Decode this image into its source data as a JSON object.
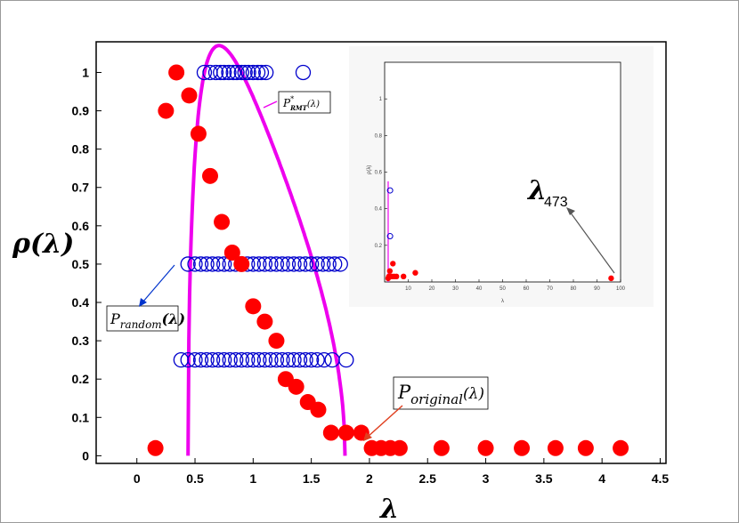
{
  "chart_data": {
    "type": "scatter",
    "ylabel": "ρ(λ)",
    "xlabel": "λ",
    "xlim": [
      -0.35,
      4.55
    ],
    "ylim": [
      -0.02,
      1.08
    ],
    "x_ticks": [
      "0",
      "0.5",
      "1",
      "1.5",
      "2",
      "2.5",
      "3",
      "3.5",
      "4",
      "4.5"
    ],
    "y_ticks": [
      "0",
      "0.1",
      "0.2",
      "0.3",
      "0.4",
      "0.5",
      "0.6",
      "0.7",
      "0.8",
      "0.9",
      "1"
    ],
    "series": [
      {
        "name": "P_original(λ)",
        "marker": "filled-circle",
        "color": "#ff0000",
        "points": [
          [
            0.16,
            0.02
          ],
          [
            0.34,
            1.0
          ],
          [
            0.25,
            0.9
          ],
          [
            0.45,
            0.94
          ],
          [
            0.53,
            0.84
          ],
          [
            0.63,
            0.73
          ],
          [
            0.73,
            0.61
          ],
          [
            0.82,
            0.53
          ],
          [
            0.9,
            0.5
          ],
          [
            1.0,
            0.39
          ],
          [
            1.1,
            0.35
          ],
          [
            1.2,
            0.3
          ],
          [
            1.28,
            0.2
          ],
          [
            1.37,
            0.18
          ],
          [
            1.47,
            0.14
          ],
          [
            1.56,
            0.12
          ],
          [
            1.67,
            0.06
          ],
          [
            1.8,
            0.06
          ],
          [
            1.93,
            0.06
          ],
          [
            2.02,
            0.02
          ],
          [
            2.1,
            0.02
          ],
          [
            2.18,
            0.02
          ],
          [
            2.26,
            0.02
          ],
          [
            2.62,
            0.02
          ],
          [
            3.0,
            0.02
          ],
          [
            3.31,
            0.02
          ],
          [
            3.6,
            0.02
          ],
          [
            3.86,
            0.02
          ],
          [
            4.16,
            0.02
          ]
        ]
      },
      {
        "name": "P_random(λ)",
        "marker": "open-circle",
        "color": "#0000cc",
        "points": [
          [
            0.58,
            1.0
          ],
          [
            0.63,
            1.0
          ],
          [
            0.68,
            1.0
          ],
          [
            0.72,
            1.0
          ],
          [
            0.75,
            1.0
          ],
          [
            0.79,
            1.0
          ],
          [
            0.83,
            1.0
          ],
          [
            0.86,
            1.0
          ],
          [
            0.9,
            1.0
          ],
          [
            0.93,
            1.0
          ],
          [
            0.96,
            1.0
          ],
          [
            1.0,
            1.0
          ],
          [
            1.04,
            1.0
          ],
          [
            1.07,
            1.0
          ],
          [
            1.11,
            1.0
          ],
          [
            1.43,
            1.0
          ],
          [
            0.44,
            0.5
          ],
          [
            0.5,
            0.5
          ],
          [
            0.55,
            0.5
          ],
          [
            0.6,
            0.5
          ],
          [
            0.65,
            0.5
          ],
          [
            0.7,
            0.5
          ],
          [
            0.75,
            0.5
          ],
          [
            0.8,
            0.5
          ],
          [
            0.85,
            0.5
          ],
          [
            0.9,
            0.5
          ],
          [
            0.95,
            0.5
          ],
          [
            1.0,
            0.5
          ],
          [
            1.05,
            0.5
          ],
          [
            1.1,
            0.5
          ],
          [
            1.15,
            0.5
          ],
          [
            1.2,
            0.5
          ],
          [
            1.25,
            0.5
          ],
          [
            1.3,
            0.5
          ],
          [
            1.35,
            0.5
          ],
          [
            1.4,
            0.5
          ],
          [
            1.45,
            0.5
          ],
          [
            1.5,
            0.5
          ],
          [
            1.55,
            0.5
          ],
          [
            1.6,
            0.5
          ],
          [
            1.65,
            0.5
          ],
          [
            1.7,
            0.5
          ],
          [
            1.75,
            0.5
          ],
          [
            0.38,
            0.25
          ],
          [
            0.44,
            0.25
          ],
          [
            0.5,
            0.25
          ],
          [
            0.55,
            0.25
          ],
          [
            0.6,
            0.25
          ],
          [
            0.65,
            0.25
          ],
          [
            0.7,
            0.25
          ],
          [
            0.75,
            0.25
          ],
          [
            0.8,
            0.25
          ],
          [
            0.85,
            0.25
          ],
          [
            0.9,
            0.25
          ],
          [
            0.95,
            0.25
          ],
          [
            1.0,
            0.25
          ],
          [
            1.05,
            0.25
          ],
          [
            1.1,
            0.25
          ],
          [
            1.15,
            0.25
          ],
          [
            1.2,
            0.25
          ],
          [
            1.25,
            0.25
          ],
          [
            1.3,
            0.25
          ],
          [
            1.35,
            0.25
          ],
          [
            1.4,
            0.25
          ],
          [
            1.45,
            0.25
          ],
          [
            1.5,
            0.25
          ],
          [
            1.55,
            0.25
          ],
          [
            1.61,
            0.25
          ],
          [
            1.68,
            0.25
          ],
          [
            1.8,
            0.25
          ]
        ]
      },
      {
        "name": "P*_RMT(λ)",
        "marker": "line",
        "color": "#ee00ee",
        "lambda_min": 0.44,
        "lambda_max": 1.79
      }
    ],
    "annotations": {
      "rmt_label": {
        "main": "P",
        "sup": "*",
        "sub": "RMT",
        "arg": "(λ)"
      },
      "random_label": {
        "main": "P",
        "sub": "random",
        "arg": "(λ)"
      },
      "original_label": {
        "main": "P",
        "sub": "original",
        "arg": "(λ)"
      }
    },
    "inset": {
      "ylabel": "ρ(λ)",
      "xlabel": "λ",
      "xlim": [
        0,
        100
      ],
      "ylim": [
        0,
        1.2
      ],
      "x_ticks": [
        "10",
        "20",
        "30",
        "40",
        "50",
        "60",
        "70",
        "80",
        "90",
        "100"
      ],
      "y_ticks": [
        "0.2",
        "0.4",
        "0.6",
        "0.8",
        "1"
      ],
      "annotation": {
        "symbol": "λ",
        "sub": "473"
      },
      "red_points": [
        [
          1.5,
          0.02
        ],
        [
          1.8,
          0.03
        ],
        [
          2.2,
          0.06
        ],
        [
          2.5,
          0.03
        ],
        [
          3,
          0.03
        ],
        [
          3.5,
          0.1
        ],
        [
          4,
          0.03
        ],
        [
          5,
          0.03
        ],
        [
          8,
          0.03
        ],
        [
          13,
          0.05
        ],
        [
          96,
          0.02
        ]
      ],
      "blue_points": [
        [
          2.3,
          0.5
        ],
        [
          2.3,
          0.25
        ]
      ]
    }
  }
}
